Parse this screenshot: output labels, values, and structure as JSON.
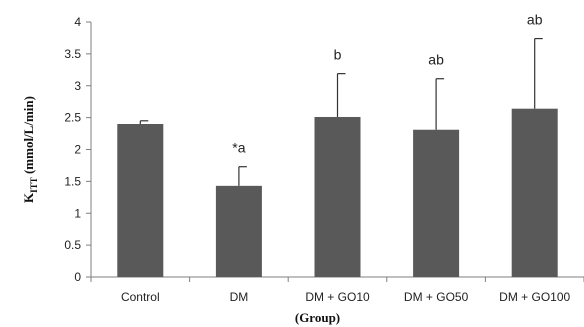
{
  "chart_data": {
    "type": "bar",
    "categories": [
      "Control",
      "DM",
      "DM + GO10",
      "DM + GO50",
      "DM + GO100"
    ],
    "values": [
      2.4,
      1.43,
      2.51,
      2.31,
      2.64
    ],
    "error_upper": [
      0.05,
      0.3,
      0.68,
      0.8,
      1.1
    ],
    "significance_labels": [
      "",
      "*a",
      "b",
      "ab",
      "ab"
    ],
    "ylabel_main": "K",
    "ylabel_sub": "ITT",
    "ylabel_unit": " (mmol/L/min)",
    "xlabel": "(Group)",
    "ylim": [
      0,
      4
    ],
    "yticks": [
      "0",
      "0.5",
      "1",
      "1.5",
      "2",
      "2.5",
      "3",
      "3.5",
      "4"
    ],
    "grid": false,
    "bar_color": "#595959",
    "axis_color": "#7f7f7f"
  }
}
